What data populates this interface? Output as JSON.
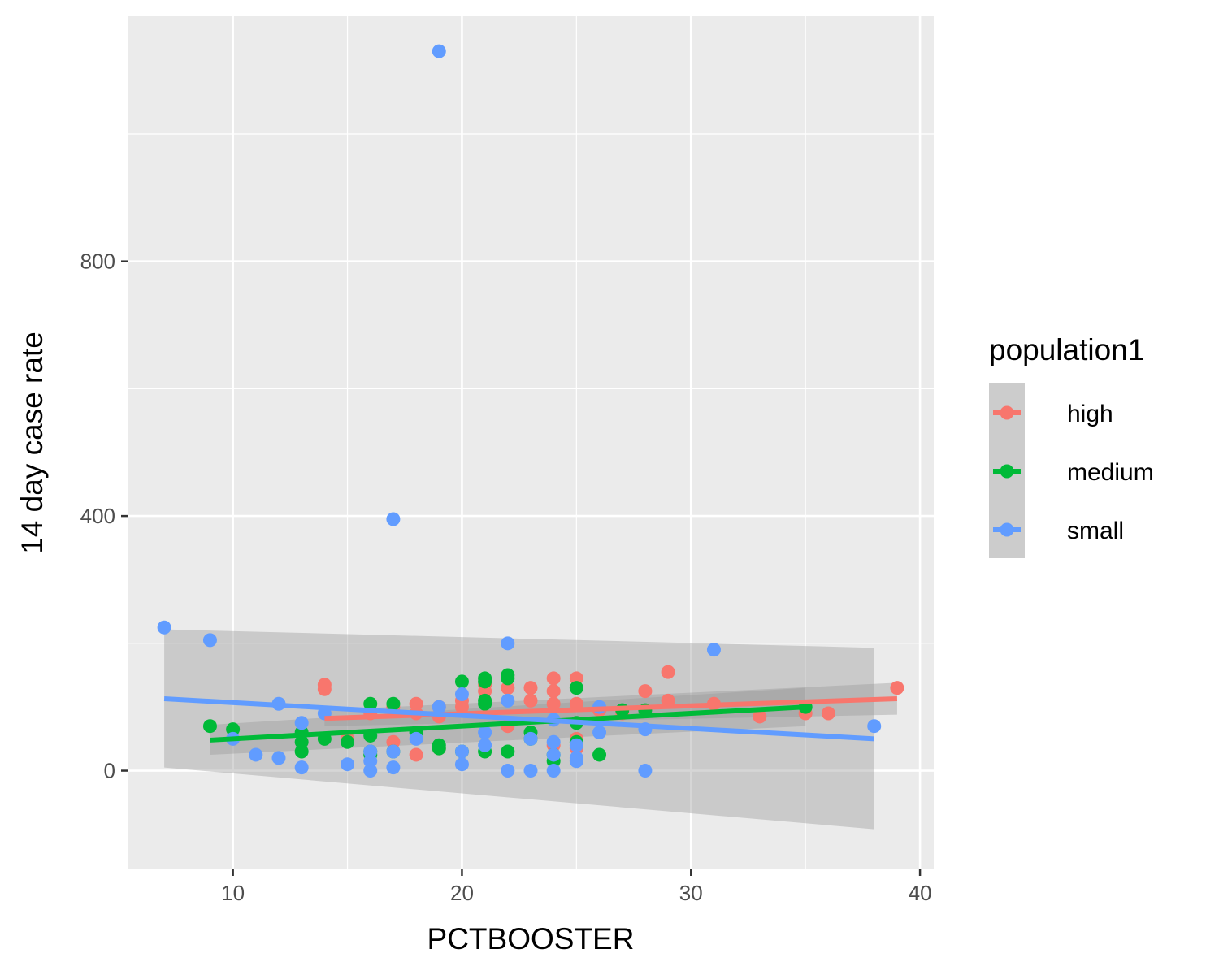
{
  "chart_data": {
    "type": "scatter",
    "title": "",
    "xlabel": "PCTBOOSTER",
    "ylabel": "14 day case rate",
    "xlim": [
      5.4,
      40.6
    ],
    "ylim": [
      -155,
      1185
    ],
    "x_ticks": [
      10,
      20,
      30,
      40
    ],
    "y_ticks": [
      0,
      400,
      800
    ],
    "x_tick_labels": [
      "10",
      "20",
      "30",
      "40"
    ],
    "y_tick_labels": [
      "0",
      "400",
      "800"
    ],
    "grid": true,
    "legend": {
      "title": "population1",
      "position": "right"
    },
    "series": [
      {
        "name": "high",
        "color": "#F8766D",
        "points": [
          [
            14,
            135
          ],
          [
            14,
            128
          ],
          [
            15,
            50
          ],
          [
            16,
            90
          ],
          [
            17,
            100
          ],
          [
            17,
            45
          ],
          [
            18,
            105
          ],
          [
            18,
            90
          ],
          [
            18,
            25
          ],
          [
            19,
            100
          ],
          [
            19,
            85
          ],
          [
            19,
            35
          ],
          [
            20,
            110
          ],
          [
            20,
            100
          ],
          [
            21,
            135
          ],
          [
            21,
            125
          ],
          [
            22,
            130
          ],
          [
            22,
            70
          ],
          [
            23,
            130
          ],
          [
            23,
            110
          ],
          [
            24,
            145
          ],
          [
            24,
            125
          ],
          [
            24,
            105
          ],
          [
            24,
            40
          ],
          [
            25,
            145
          ],
          [
            25,
            105
          ],
          [
            25,
            50
          ],
          [
            25,
            35
          ],
          [
            26,
            95
          ],
          [
            27,
            90
          ],
          [
            28,
            125
          ],
          [
            29,
            155
          ],
          [
            29,
            110
          ],
          [
            31,
            105
          ],
          [
            33,
            85
          ],
          [
            35,
            90
          ],
          [
            36,
            90
          ],
          [
            39,
            130
          ]
        ],
        "fit": {
          "x": [
            14,
            39
          ],
          "y": [
            82,
            113
          ],
          "ci_lower": [
            70,
            88
          ],
          "ci_upper": [
            95,
            138
          ]
        }
      },
      {
        "name": "medium",
        "color": "#00BA38",
        "points": [
          [
            9,
            70
          ],
          [
            10,
            65
          ],
          [
            13,
            30
          ],
          [
            13,
            60
          ],
          [
            13,
            45
          ],
          [
            14,
            50
          ],
          [
            15,
            45
          ],
          [
            16,
            105
          ],
          [
            16,
            30
          ],
          [
            16,
            25
          ],
          [
            16,
            55
          ],
          [
            17,
            105
          ],
          [
            17,
            30
          ],
          [
            18,
            60
          ],
          [
            19,
            40
          ],
          [
            19,
            35
          ],
          [
            20,
            140
          ],
          [
            20,
            30
          ],
          [
            21,
            145
          ],
          [
            21,
            140
          ],
          [
            21,
            110
          ],
          [
            21,
            105
          ],
          [
            21,
            30
          ],
          [
            22,
            150
          ],
          [
            22,
            145
          ],
          [
            22,
            30
          ],
          [
            23,
            60
          ],
          [
            23,
            50
          ],
          [
            24,
            25
          ],
          [
            24,
            15
          ],
          [
            25,
            130
          ],
          [
            25,
            75
          ],
          [
            25,
            45
          ],
          [
            26,
            25
          ],
          [
            27,
            95
          ],
          [
            28,
            95
          ],
          [
            35,
            100
          ]
        ],
        "fit": {
          "x": [
            9,
            35
          ],
          "y": [
            48,
            100
          ],
          "ci_lower": [
            25,
            70
          ],
          "ci_upper": [
            72,
            130
          ]
        }
      },
      {
        "name": "small",
        "color": "#619CFF",
        "points": [
          [
            7,
            225
          ],
          [
            9,
            205
          ],
          [
            10,
            50
          ],
          [
            11,
            25
          ],
          [
            12,
            105
          ],
          [
            12,
            20
          ],
          [
            13,
            75
          ],
          [
            13,
            5
          ],
          [
            14,
            90
          ],
          [
            15,
            10
          ],
          [
            16,
            15
          ],
          [
            16,
            30
          ],
          [
            16,
            0
          ],
          [
            17,
            395
          ],
          [
            17,
            30
          ],
          [
            17,
            5
          ],
          [
            18,
            50
          ],
          [
            19,
            1130
          ],
          [
            19,
            100
          ],
          [
            20,
            120
          ],
          [
            20,
            30
          ],
          [
            20,
            10
          ],
          [
            21,
            60
          ],
          [
            21,
            40
          ],
          [
            22,
            200
          ],
          [
            22,
            110
          ],
          [
            22,
            0
          ],
          [
            23,
            50
          ],
          [
            23,
            0
          ],
          [
            24,
            80
          ],
          [
            24,
            45
          ],
          [
            24,
            25
          ],
          [
            24,
            0
          ],
          [
            25,
            40
          ],
          [
            25,
            20
          ],
          [
            25,
            15
          ],
          [
            26,
            100
          ],
          [
            26,
            60
          ],
          [
            28,
            65
          ],
          [
            28,
            0
          ],
          [
            31,
            190
          ],
          [
            38,
            70
          ]
        ],
        "fit": {
          "x": [
            7,
            38
          ],
          "y": [
            113,
            50
          ],
          "ci_lower": [
            5,
            -92
          ],
          "ci_upper": [
            222,
            193
          ]
        }
      }
    ]
  }
}
